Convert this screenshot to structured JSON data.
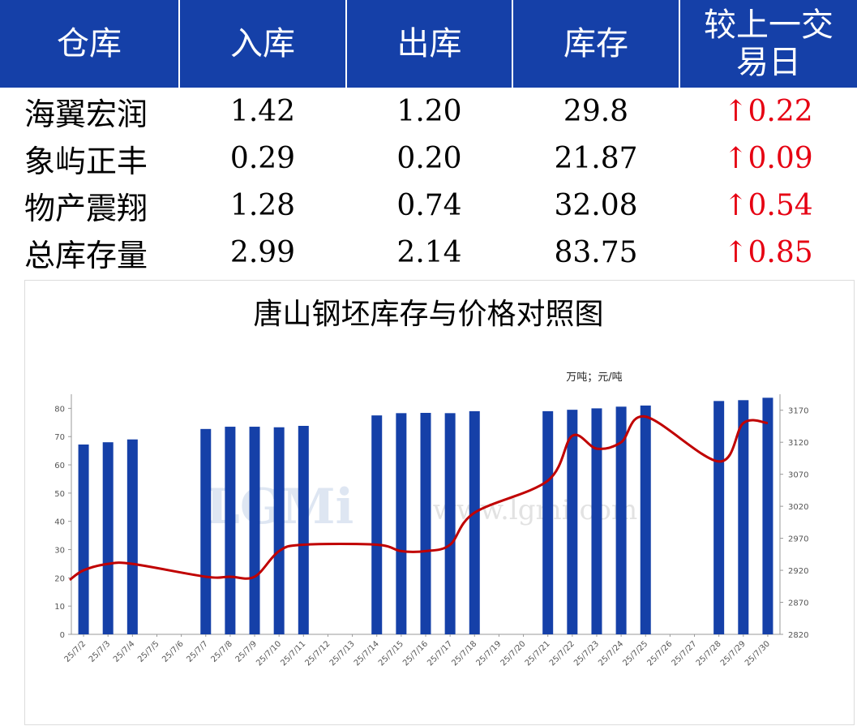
{
  "table": {
    "headers": [
      "仓库",
      "入库",
      "出库",
      "库存",
      "较上一交易日"
    ],
    "rows": [
      {
        "name": "海翼宏润",
        "in": "1.42",
        "out": "1.20",
        "stock": "29.8",
        "change": "↑0.22"
      },
      {
        "name": "象屿正丰",
        "in": "0.29",
        "out": "0.20",
        "stock": "21.87",
        "change": "↑0.09"
      },
      {
        "name": "物产震翔",
        "in": "1.28",
        "out": "0.74",
        "stock": "32.08",
        "change": "↑0.54"
      },
      {
        "name": "总库存量",
        "in": "2.99",
        "out": "2.14",
        "stock": "83.75",
        "change": "↑0.85"
      }
    ]
  },
  "colors": {
    "header_bg": "#1540a8",
    "bar": "#1540a8",
    "line": "#c00000",
    "change": "#e60012"
  },
  "watermark": {
    "logo": "LGMi",
    "url": "www.lgmi.com"
  },
  "chart_data": {
    "type": "bar",
    "title": "唐山钢坯库存与价格对照图",
    "unit_label": "万吨；元/吨",
    "categories": [
      "25/7/2",
      "25/7/3",
      "25/7/4",
      "25/7/5",
      "25/7/6",
      "25/7/7",
      "25/7/8",
      "25/7/9",
      "25/7/10",
      "25/7/11",
      "25/7/12",
      "25/7/13",
      "25/7/14",
      "25/7/15",
      "25/7/16",
      "25/7/17",
      "25/7/18",
      "25/7/19",
      "25/7/20",
      "25/7/21",
      "25/7/22",
      "25/7/23",
      "25/7/24",
      "25/7/25",
      "25/7/26",
      "25/7/27",
      "25/7/28",
      "25/7/29",
      "25/7/30"
    ],
    "series": [
      {
        "type": "bar",
        "axis": "left",
        "values": [
          67.2,
          68.0,
          69.0,
          null,
          null,
          72.7,
          73.5,
          73.5,
          73.3,
          73.8,
          null,
          null,
          77.5,
          78.3,
          78.4,
          78.3,
          79.0,
          null,
          null,
          79.0,
          79.5,
          80.0,
          80.6,
          81.0,
          null,
          null,
          82.6,
          82.9,
          83.75
        ]
      },
      {
        "type": "line",
        "axis": "right",
        "values": [
          2920,
          2930,
          2930,
          null,
          null,
          2910,
          2910,
          2910,
          2950,
          2960,
          null,
          null,
          2960,
          2950,
          2950,
          2960,
          3010,
          null,
          null,
          3060,
          3130,
          3110,
          3120,
          3160,
          null,
          null,
          3090,
          3150,
          3150
        ]
      }
    ],
    "y_left": {
      "min": 0,
      "max": 85,
      "ticks": [
        0,
        10,
        20,
        30,
        40,
        50,
        60,
        70,
        80
      ]
    },
    "y_right": {
      "min": 2820,
      "max": 3195,
      "ticks": [
        2820,
        2870,
        2920,
        2970,
        3020,
        3070,
        3120,
        3170
      ]
    },
    "grid": false
  }
}
